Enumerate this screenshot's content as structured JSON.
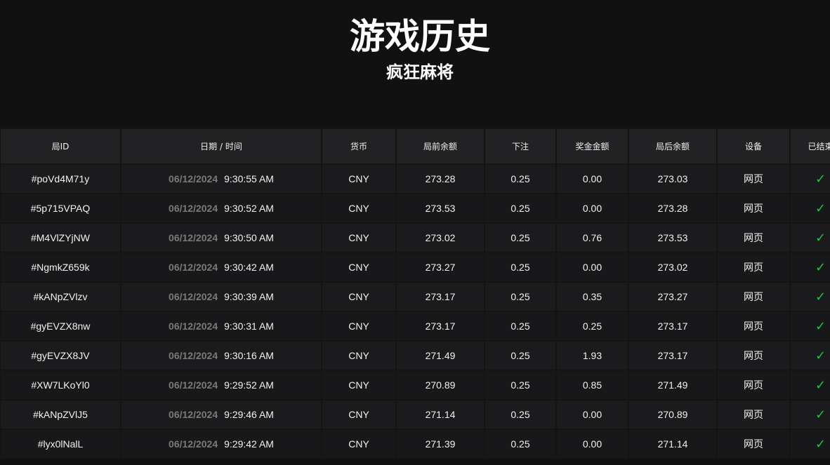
{
  "header": {
    "title": "游戏历史",
    "subtitle": "疯狂麻将"
  },
  "table": {
    "columns": [
      "局ID",
      "日期 / 时间",
      "货币",
      "局前余额",
      "下注",
      "奖金金额",
      "局后余额",
      "设备",
      "已结束"
    ],
    "rows": [
      {
        "id": "#poVd4M71y",
        "date": "06/12/2024",
        "time": "9:30:55 AM",
        "currency": "CNY",
        "before": "273.28",
        "bet": "0.25",
        "win": "0.00",
        "after": "273.03",
        "device": "网页",
        "finished": true
      },
      {
        "id": "#5p715VPAQ",
        "date": "06/12/2024",
        "time": "9:30:52 AM",
        "currency": "CNY",
        "before": "273.53",
        "bet": "0.25",
        "win": "0.00",
        "after": "273.28",
        "device": "网页",
        "finished": true
      },
      {
        "id": "#M4VlZYjNW",
        "date": "06/12/2024",
        "time": "9:30:50 AM",
        "currency": "CNY",
        "before": "273.02",
        "bet": "0.25",
        "win": "0.76",
        "after": "273.53",
        "device": "网页",
        "finished": true
      },
      {
        "id": "#NgmkZ659k",
        "date": "06/12/2024",
        "time": "9:30:42 AM",
        "currency": "CNY",
        "before": "273.27",
        "bet": "0.25",
        "win": "0.00",
        "after": "273.02",
        "device": "网页",
        "finished": true
      },
      {
        "id": "#kANpZVlzv",
        "date": "06/12/2024",
        "time": "9:30:39 AM",
        "currency": "CNY",
        "before": "273.17",
        "bet": "0.25",
        "win": "0.35",
        "after": "273.27",
        "device": "网页",
        "finished": true
      },
      {
        "id": "#gyEVZX8nw",
        "date": "06/12/2024",
        "time": "9:30:31 AM",
        "currency": "CNY",
        "before": "273.17",
        "bet": "0.25",
        "win": "0.25",
        "after": "273.17",
        "device": "网页",
        "finished": true
      },
      {
        "id": "#gyEVZX8JV",
        "date": "06/12/2024",
        "time": "9:30:16 AM",
        "currency": "CNY",
        "before": "271.49",
        "bet": "0.25",
        "win": "1.93",
        "after": "273.17",
        "device": "网页",
        "finished": true
      },
      {
        "id": "#XW7LKoYl0",
        "date": "06/12/2024",
        "time": "9:29:52 AM",
        "currency": "CNY",
        "before": "270.89",
        "bet": "0.25",
        "win": "0.85",
        "after": "271.49",
        "device": "网页",
        "finished": true
      },
      {
        "id": "#kANpZVlJ5",
        "date": "06/12/2024",
        "time": "9:29:46 AM",
        "currency": "CNY",
        "before": "271.14",
        "bet": "0.25",
        "win": "0.00",
        "after": "270.89",
        "device": "网页",
        "finished": true
      },
      {
        "id": "#lyx0lNalL",
        "date": "06/12/2024",
        "time": "9:29:42 AM",
        "currency": "CNY",
        "before": "271.39",
        "bet": "0.25",
        "win": "0.00",
        "after": "271.14",
        "device": "网页",
        "finished": true
      }
    ]
  },
  "colors": {
    "background": "#111112",
    "header_row": "#222224",
    "check": "#2bbd45",
    "date": "#7a7a7a"
  },
  "icons": {
    "finished": "check-icon"
  }
}
